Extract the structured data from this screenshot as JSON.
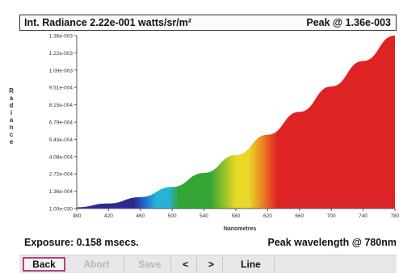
{
  "header": {
    "title": "Int. Radiance 2.22e-001 watts/sr/m²",
    "peak": "Peak @ 1.36e-003"
  },
  "footer": {
    "exposure": "Exposure: 0.158 msecs.",
    "peak_wavelength": "Peak wavelength @ 780nm"
  },
  "toolbar": {
    "back": "Back",
    "abort": "Abort",
    "save": "Save",
    "prev": "<",
    "next": ">",
    "line": "Line"
  },
  "colors": {
    "violet": "#2c2a8e",
    "blue": "#1f64c8",
    "cyan": "#27b2d8",
    "green": "#33a534",
    "yellow": "#e8d927",
    "orange": "#ee8a23",
    "red": "#dd2323"
  },
  "chart_data": {
    "type": "area",
    "xlabel": "Nanometres",
    "ylabel": "Radiance",
    "x_ticks": [
      "380",
      "420",
      "460",
      "500",
      "540",
      "580",
      "620",
      "660",
      "700",
      "740",
      "780"
    ],
    "y_ticks": [
      "1.36e-003",
      "1.22e-003",
      "1.09e-003",
      "9.51e-004",
      "8.15e-004",
      "6.79e-004",
      "5.43e-004",
      "4.08e-004",
      "2.72e-004",
      "1.36e-004",
      "1.00e-030"
    ],
    "xlim": [
      380,
      780
    ],
    "ylim": [
      0,
      0.00136
    ],
    "x": [
      380,
      420,
      460,
      500,
      540,
      580,
      620,
      660,
      700,
      740,
      780
    ],
    "values": [
      1e-05,
      4e-05,
      9e-05,
      0.00017,
      0.00028,
      0.00042,
      0.00058,
      0.00076,
      0.00096,
      0.00116,
      0.00136
    ]
  }
}
